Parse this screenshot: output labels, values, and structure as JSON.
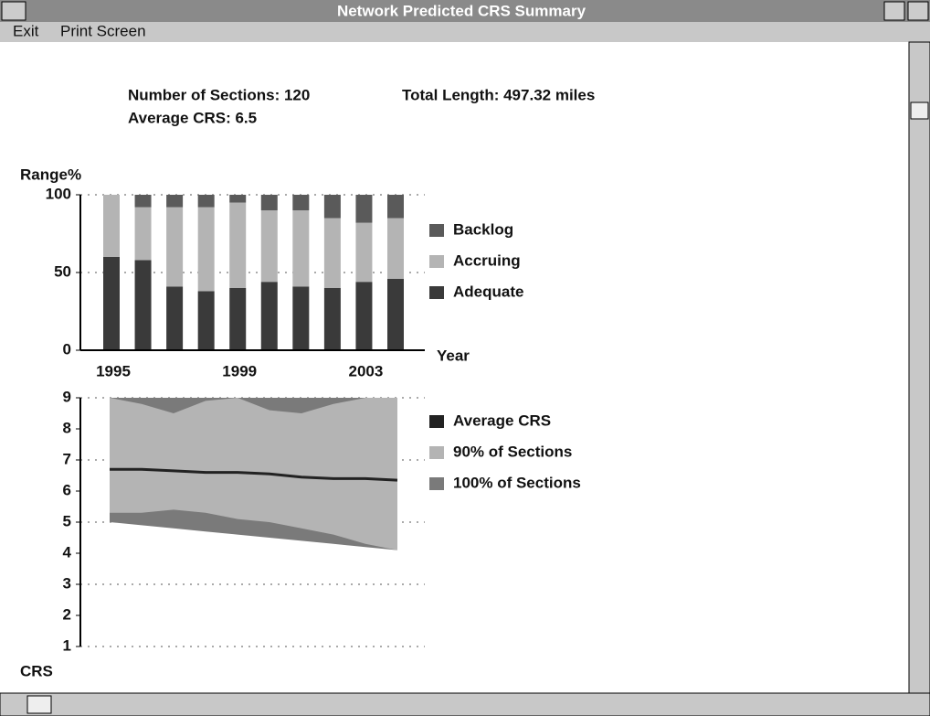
{
  "window": {
    "title": "Network Predicted CRS Summary",
    "menu": [
      "Exit",
      "Print Screen"
    ]
  },
  "summary": {
    "sections": "Number of Sections: 120",
    "length": "Total Length: 497.32 miles",
    "average": "Average CRS: 6.5"
  },
  "chart_data": [
    {
      "type": "bar",
      "stacked": true,
      "y_label": "Range%",
      "x_label": "Year",
      "categories": [
        "1995",
        null,
        null,
        null,
        "1999",
        null,
        null,
        null,
        "2003",
        null
      ],
      "ylim": [
        0,
        100
      ],
      "yticks": [
        0,
        50,
        100
      ],
      "grid": true,
      "series": [
        {
          "name": "Adequate",
          "color": "#3a3a3a",
          "values": [
            60,
            58,
            41,
            38,
            40,
            44,
            41,
            40,
            44,
            46
          ]
        },
        {
          "name": "Accruing",
          "color": "#b4b4b4",
          "values": [
            40,
            34,
            51,
            54,
            55,
            46,
            49,
            45,
            38,
            39
          ]
        },
        {
          "name": "Backlog",
          "color": "#5a5a5a",
          "values": [
            0,
            8,
            8,
            8,
            5,
            10,
            10,
            15,
            18,
            15
          ]
        }
      ]
    },
    {
      "type": "area",
      "y_label": "CRS",
      "ylim": [
        1,
        9
      ],
      "yticks": [
        1,
        2,
        3,
        4,
        5,
        6,
        7,
        8,
        9
      ],
      "grid": true,
      "series": [
        {
          "name": "100% of Sections",
          "color": "#7a7a7a",
          "high": [
            9,
            9,
            9,
            9,
            9,
            9,
            9,
            9,
            9,
            9
          ],
          "low": [
            5.0,
            4.9,
            4.8,
            4.7,
            4.6,
            4.5,
            4.4,
            4.3,
            4.2,
            4.1
          ]
        },
        {
          "name": "90% of Sections",
          "color": "#b4b4b4",
          "high": [
            9,
            8.8,
            8.5,
            8.9,
            9,
            8.6,
            8.5,
            8.8,
            9,
            9
          ],
          "low": [
            5.3,
            5.3,
            5.4,
            5.3,
            5.1,
            5.0,
            4.8,
            4.6,
            4.3,
            4.1
          ]
        },
        {
          "name": "Average CRS",
          "color": "#222222",
          "line": true,
          "values": [
            6.7,
            6.7,
            6.65,
            6.6,
            6.6,
            6.55,
            6.45,
            6.4,
            6.4,
            6.35
          ]
        }
      ]
    }
  ]
}
